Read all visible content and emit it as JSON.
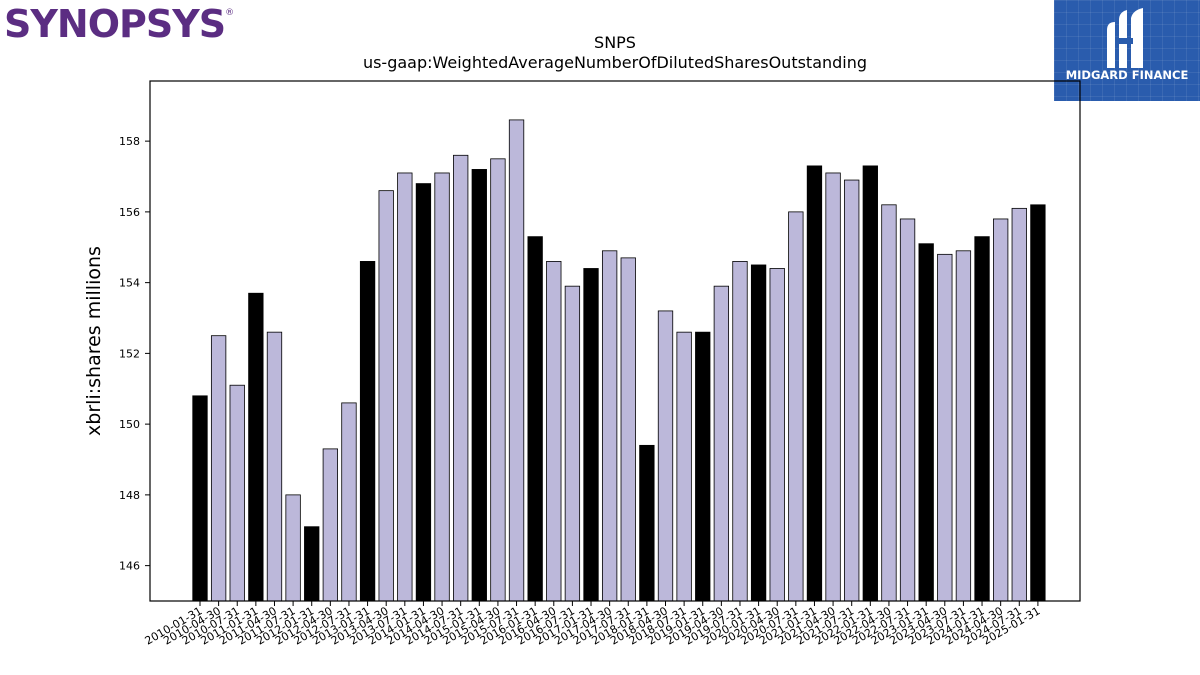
{
  "logos": {
    "left_brand": "SYNOPSYS",
    "right_brand": "MIDGARD FINANCE",
    "left_brand_color": "#5b2d82",
    "right_bg_color": "#2a5cad"
  },
  "chart_data": {
    "type": "bar",
    "title": "SNPS",
    "subtitle": "us-gaap:WeightedAverageNumberOfDilutedSharesOutstanding",
    "ylabel": "xbrli:shares millions",
    "xlabel": "",
    "ylim": [
      145.0,
      159.7
    ],
    "yticks": [
      146,
      148,
      150,
      152,
      154,
      156,
      158
    ],
    "colors": {
      "highlight": "#000000",
      "regular": "#bcb8da"
    },
    "categories": [
      "2010-01-31",
      "2010-04-30",
      "2010-07-31",
      "2011-01-31",
      "2011-04-30",
      "2011-07-31",
      "2012-01-31",
      "2012-04-30",
      "2012-07-31",
      "2013-01-31",
      "2013-04-30",
      "2013-07-31",
      "2014-01-31",
      "2014-04-30",
      "2014-07-31",
      "2015-01-31",
      "2015-04-30",
      "2015-07-31",
      "2016-01-31",
      "2016-04-30",
      "2016-07-31",
      "2017-01-31",
      "2017-04-30",
      "2017-07-31",
      "2018-01-31",
      "2018-04-30",
      "2018-07-31",
      "2019-01-31",
      "2019-04-30",
      "2019-07-31",
      "2020-01-31",
      "2020-04-30",
      "2020-07-31",
      "2021-01-31",
      "2021-04-30",
      "2021-07-31",
      "2022-01-31",
      "2022-04-30",
      "2022-07-31",
      "2023-01-31",
      "2023-04-30",
      "2023-07-31",
      "2024-01-31",
      "2024-04-30",
      "2024-07-31",
      "2025-01-31"
    ],
    "values": [
      150.8,
      152.5,
      151.1,
      153.7,
      152.6,
      148.0,
      147.1,
      149.3,
      150.6,
      154.6,
      156.6,
      157.1,
      156.8,
      157.1,
      157.6,
      157.2,
      157.5,
      158.6,
      155.3,
      154.6,
      153.9,
      154.4,
      154.9,
      154.7,
      149.4,
      153.2,
      152.6,
      152.6,
      153.9,
      154.6,
      154.5,
      154.4,
      156.0,
      157.3,
      157.1,
      156.9,
      157.3,
      156.2,
      155.8,
      155.1,
      154.8,
      154.9,
      155.3,
      155.8,
      156.1,
      156.2
    ],
    "highlight": [
      true,
      false,
      false,
      true,
      false,
      false,
      true,
      false,
      false,
      true,
      false,
      false,
      true,
      false,
      false,
      true,
      false,
      false,
      true,
      false,
      false,
      true,
      false,
      false,
      true,
      false,
      false,
      true,
      false,
      false,
      true,
      false,
      false,
      true,
      false,
      false,
      true,
      false,
      false,
      true,
      false,
      false,
      true,
      false,
      false,
      true
    ]
  }
}
